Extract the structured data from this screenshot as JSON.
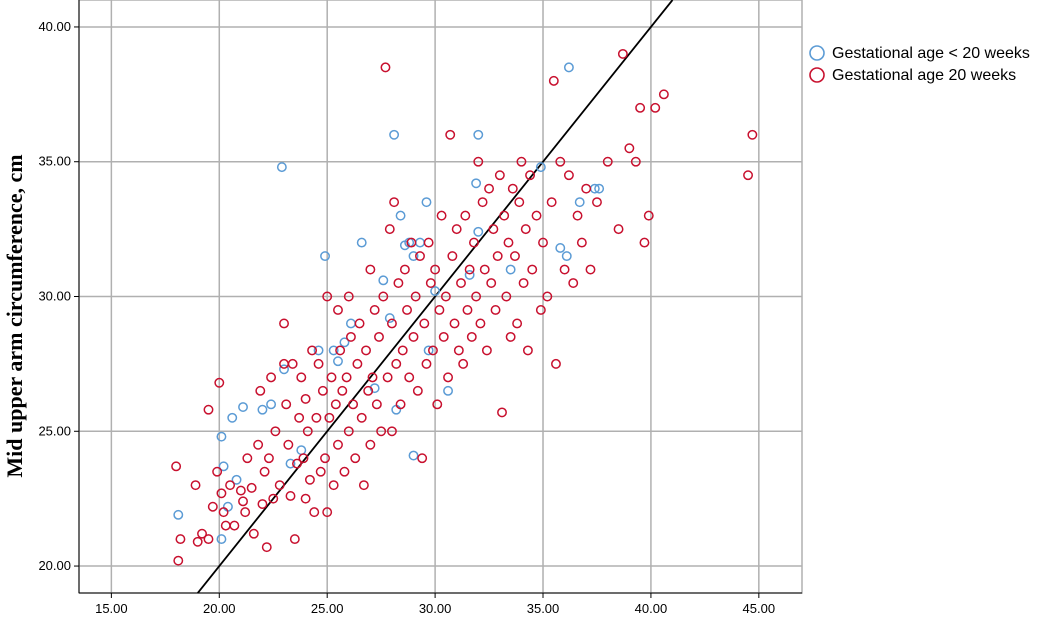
{
  "chart_data": {
    "type": "scatter",
    "title": "",
    "xlabel": "",
    "ylabel": "Mid upper arm circumference, cm",
    "xlim": [
      13.5,
      47
    ],
    "ylim": [
      19,
      41
    ],
    "xticks": [
      "15.00",
      "20.00",
      "25.00",
      "30.00",
      "35.00",
      "40.00",
      "45.00"
    ],
    "yticks": [
      "20.00",
      "25.00",
      "30.00",
      "35.00",
      "40.00"
    ],
    "grid": true,
    "legend_position": "top-right",
    "reference_line": {
      "type": "identity",
      "color": "#000000"
    },
    "series": [
      {
        "name": "Gestational age < 20 weeks",
        "color": "#5b9bd5",
        "marker": "open-circle",
        "points": [
          [
            18.1,
            21.9
          ],
          [
            20.1,
            24.8
          ],
          [
            20.2,
            23.7
          ],
          [
            20.1,
            21.0
          ],
          [
            20.4,
            22.2
          ],
          [
            20.6,
            25.5
          ],
          [
            20.8,
            23.2
          ],
          [
            21.1,
            25.9
          ],
          [
            22.0,
            25.8
          ],
          [
            22.4,
            26.0
          ],
          [
            22.9,
            34.8
          ],
          [
            23.0,
            27.3
          ],
          [
            23.3,
            23.8
          ],
          [
            23.8,
            24.3
          ],
          [
            24.6,
            28.0
          ],
          [
            24.9,
            31.5
          ],
          [
            25.3,
            28.0
          ],
          [
            25.5,
            27.6
          ],
          [
            25.8,
            28.3
          ],
          [
            26.1,
            29.0
          ],
          [
            26.6,
            32.0
          ],
          [
            27.2,
            26.6
          ],
          [
            27.6,
            30.6
          ],
          [
            27.9,
            29.2
          ],
          [
            28.1,
            36.0
          ],
          [
            28.2,
            25.8
          ],
          [
            28.4,
            33.0
          ],
          [
            28.6,
            31.9
          ],
          [
            28.8,
            32.0
          ],
          [
            29.0,
            31.5
          ],
          [
            29.0,
            24.1
          ],
          [
            29.3,
            32.0
          ],
          [
            29.6,
            33.5
          ],
          [
            29.7,
            28.0
          ],
          [
            30.0,
            30.2
          ],
          [
            30.6,
            26.5
          ],
          [
            31.6,
            30.8
          ],
          [
            31.9,
            34.2
          ],
          [
            32.0,
            36.0
          ],
          [
            32.0,
            32.4
          ],
          [
            33.5,
            31.0
          ],
          [
            34.9,
            34.8
          ],
          [
            35.8,
            31.8
          ],
          [
            36.1,
            31.5
          ],
          [
            36.2,
            38.5
          ],
          [
            36.7,
            33.5
          ],
          [
            37.4,
            34.0
          ],
          [
            37.6,
            34.0
          ]
        ]
      },
      {
        "name": "Gestational age  20 weeks",
        "color": "#c8102e",
        "marker": "open-circle",
        "points": [
          [
            18.0,
            23.7
          ],
          [
            18.1,
            20.2
          ],
          [
            18.2,
            21.0
          ],
          [
            18.9,
            23.0
          ],
          [
            19.0,
            20.9
          ],
          [
            19.2,
            21.2
          ],
          [
            19.5,
            25.8
          ],
          [
            19.5,
            21.0
          ],
          [
            19.7,
            22.2
          ],
          [
            19.9,
            23.5
          ],
          [
            20.0,
            26.8
          ],
          [
            20.1,
            22.7
          ],
          [
            20.2,
            22.0
          ],
          [
            20.3,
            21.5
          ],
          [
            20.5,
            23.0
          ],
          [
            20.7,
            21.5
          ],
          [
            21.0,
            22.8
          ],
          [
            21.1,
            22.4
          ],
          [
            21.2,
            22.0
          ],
          [
            21.3,
            24.0
          ],
          [
            21.5,
            22.9
          ],
          [
            21.6,
            21.2
          ],
          [
            21.8,
            24.5
          ],
          [
            21.9,
            26.5
          ],
          [
            22.0,
            22.3
          ],
          [
            22.1,
            23.5
          ],
          [
            22.2,
            20.7
          ],
          [
            22.3,
            24.0
          ],
          [
            22.4,
            27.0
          ],
          [
            22.5,
            22.5
          ],
          [
            22.6,
            25.0
          ],
          [
            22.8,
            23.0
          ],
          [
            23.0,
            29.0
          ],
          [
            23.0,
            27.5
          ],
          [
            23.1,
            26.0
          ],
          [
            23.2,
            24.5
          ],
          [
            23.3,
            22.6
          ],
          [
            23.4,
            27.5
          ],
          [
            23.5,
            21.0
          ],
          [
            23.6,
            23.8
          ],
          [
            23.7,
            25.5
          ],
          [
            23.8,
            27.0
          ],
          [
            23.9,
            24.0
          ],
          [
            24.0,
            22.5
          ],
          [
            24.0,
            26.2
          ],
          [
            24.1,
            25.0
          ],
          [
            24.2,
            23.2
          ],
          [
            24.3,
            28.0
          ],
          [
            24.4,
            22.0
          ],
          [
            24.5,
            25.5
          ],
          [
            24.6,
            27.5
          ],
          [
            24.7,
            23.5
          ],
          [
            24.8,
            26.5
          ],
          [
            24.9,
            24.0
          ],
          [
            25.0,
            30.0
          ],
          [
            25.0,
            22.0
          ],
          [
            25.1,
            25.5
          ],
          [
            25.2,
            27.0
          ],
          [
            25.3,
            23.0
          ],
          [
            25.4,
            26.0
          ],
          [
            25.5,
            29.5
          ],
          [
            25.5,
            24.5
          ],
          [
            25.6,
            28.0
          ],
          [
            25.7,
            26.5
          ],
          [
            25.8,
            23.5
          ],
          [
            25.9,
            27.0
          ],
          [
            26.0,
            25.0
          ],
          [
            26.0,
            30.0
          ],
          [
            26.1,
            28.5
          ],
          [
            26.2,
            26.0
          ],
          [
            26.3,
            24.0
          ],
          [
            26.4,
            27.5
          ],
          [
            26.5,
            29.0
          ],
          [
            26.6,
            25.5
          ],
          [
            26.7,
            23.0
          ],
          [
            26.8,
            28.0
          ],
          [
            26.9,
            26.5
          ],
          [
            27.0,
            31.0
          ],
          [
            27.0,
            24.5
          ],
          [
            27.1,
            27.0
          ],
          [
            27.2,
            29.5
          ],
          [
            27.3,
            26.0
          ],
          [
            27.4,
            28.5
          ],
          [
            27.5,
            25.0
          ],
          [
            27.6,
            30.0
          ],
          [
            27.7,
            38.5
          ],
          [
            27.8,
            27.0
          ],
          [
            27.9,
            32.5
          ],
          [
            28.0,
            25.0
          ],
          [
            28.0,
            29.0
          ],
          [
            28.1,
            33.5
          ],
          [
            28.2,
            27.5
          ],
          [
            28.3,
            30.5
          ],
          [
            28.4,
            26.0
          ],
          [
            28.5,
            28.0
          ],
          [
            28.6,
            31.0
          ],
          [
            28.7,
            29.5
          ],
          [
            28.8,
            27.0
          ],
          [
            28.9,
            32.0
          ],
          [
            29.0,
            28.5
          ],
          [
            29.1,
            30.0
          ],
          [
            29.2,
            26.5
          ],
          [
            29.3,
            31.5
          ],
          [
            29.4,
            24.0
          ],
          [
            29.5,
            29.0
          ],
          [
            29.6,
            27.5
          ],
          [
            29.7,
            32.0
          ],
          [
            29.8,
            30.5
          ],
          [
            29.9,
            28.0
          ],
          [
            30.0,
            31.0
          ],
          [
            30.1,
            26.0
          ],
          [
            30.2,
            29.5
          ],
          [
            30.3,
            33.0
          ],
          [
            30.4,
            28.5
          ],
          [
            30.5,
            30.0
          ],
          [
            30.6,
            27.0
          ],
          [
            30.7,
            36.0
          ],
          [
            30.8,
            31.5
          ],
          [
            30.9,
            29.0
          ],
          [
            31.0,
            32.5
          ],
          [
            31.1,
            28.0
          ],
          [
            31.2,
            30.5
          ],
          [
            31.3,
            27.5
          ],
          [
            31.4,
            33.0
          ],
          [
            31.5,
            29.5
          ],
          [
            31.6,
            31.0
          ],
          [
            31.7,
            28.5
          ],
          [
            31.8,
            32.0
          ],
          [
            31.9,
            30.0
          ],
          [
            32.0,
            35.0
          ],
          [
            32.1,
            29.0
          ],
          [
            32.2,
            33.5
          ],
          [
            32.3,
            31.0
          ],
          [
            32.4,
            28.0
          ],
          [
            32.5,
            34.0
          ],
          [
            32.6,
            30.5
          ],
          [
            32.7,
            32.5
          ],
          [
            32.8,
            29.5
          ],
          [
            32.9,
            31.5
          ],
          [
            33.0,
            34.5
          ],
          [
            33.1,
            25.7
          ],
          [
            33.2,
            33.0
          ],
          [
            33.3,
            30.0
          ],
          [
            33.4,
            32.0
          ],
          [
            33.5,
            28.5
          ],
          [
            33.6,
            34.0
          ],
          [
            33.7,
            31.5
          ],
          [
            33.8,
            29.0
          ],
          [
            33.9,
            33.5
          ],
          [
            34.0,
            35.0
          ],
          [
            34.1,
            30.5
          ],
          [
            34.2,
            32.5
          ],
          [
            34.3,
            28.0
          ],
          [
            34.4,
            34.5
          ],
          [
            34.5,
            31.0
          ],
          [
            34.7,
            33.0
          ],
          [
            34.9,
            29.5
          ],
          [
            35.0,
            32.0
          ],
          [
            35.2,
            30.0
          ],
          [
            35.4,
            33.5
          ],
          [
            35.5,
            38.0
          ],
          [
            35.6,
            27.5
          ],
          [
            35.8,
            35.0
          ],
          [
            36.0,
            31.0
          ],
          [
            36.2,
            34.5
          ],
          [
            36.4,
            30.5
          ],
          [
            36.6,
            33.0
          ],
          [
            36.8,
            32.0
          ],
          [
            37.0,
            34.0
          ],
          [
            37.2,
            31.0
          ],
          [
            37.5,
            33.5
          ],
          [
            38.0,
            35.0
          ],
          [
            38.5,
            32.5
          ],
          [
            38.7,
            39.0
          ],
          [
            39.0,
            35.5
          ],
          [
            39.3,
            35.0
          ],
          [
            39.5,
            37.0
          ],
          [
            39.7,
            32.0
          ],
          [
            39.9,
            33.0
          ],
          [
            40.2,
            37.0
          ],
          [
            40.6,
            37.5
          ],
          [
            44.5,
            34.5
          ],
          [
            44.7,
            36.0
          ]
        ]
      }
    ]
  }
}
